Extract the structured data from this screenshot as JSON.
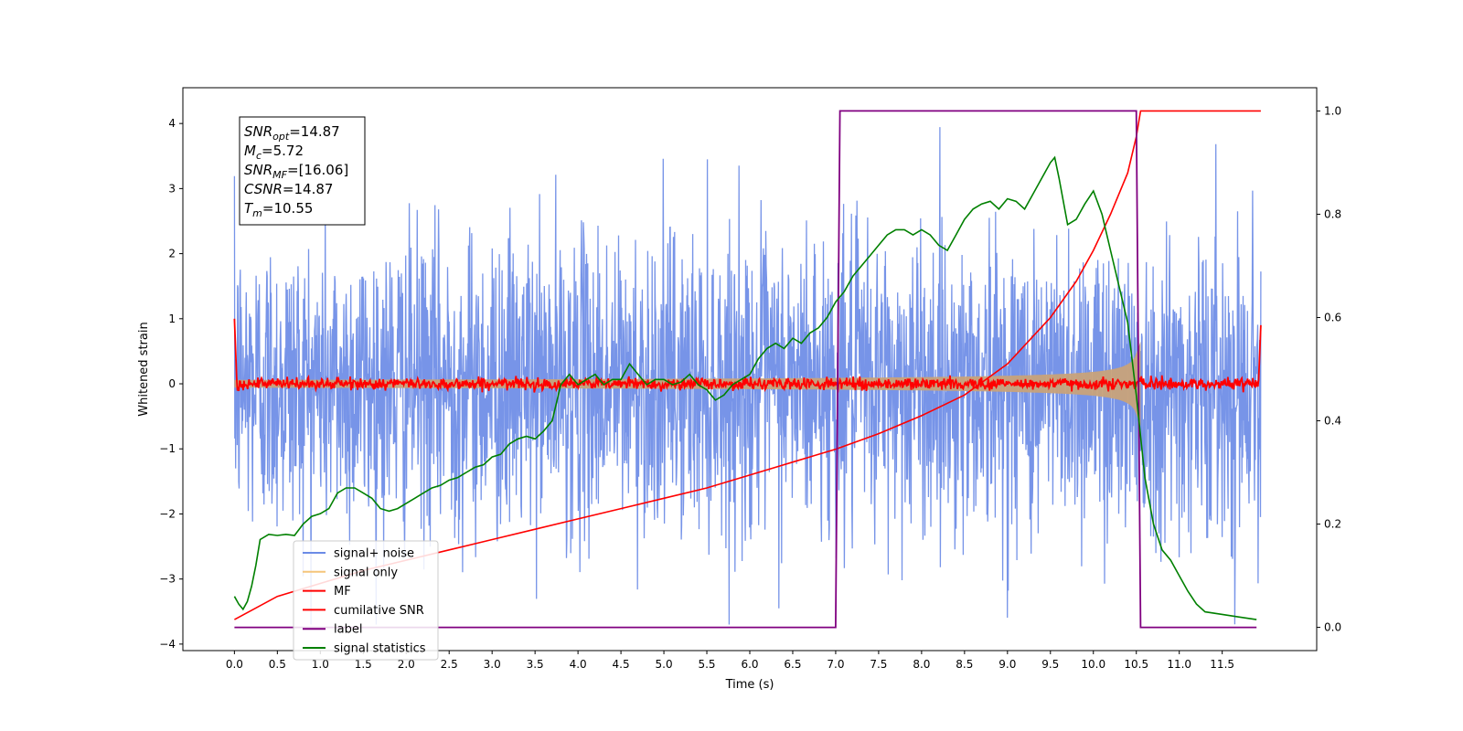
{
  "chart_data": {
    "type": "line",
    "xlabel": "Time (s)",
    "ylabel_left": "Whitened strain",
    "ylabel_right": "",
    "xlim": [
      -0.6,
      12.6
    ],
    "ylim_left": [
      -4.1,
      4.55
    ],
    "ylim_right": [
      -0.045,
      1.045
    ],
    "x_ticks": [
      "0.0",
      "0.5",
      "1.0",
      "1.5",
      "2.0",
      "2.5",
      "3.0",
      "3.5",
      "4.0",
      "4.5",
      "5.0",
      "5.5",
      "6.0",
      "6.5",
      "7.0",
      "7.5",
      "8.0",
      "8.5",
      "9.0",
      "9.5",
      "10.0",
      "10.5",
      "11.0",
      "11.5"
    ],
    "x_tick_values": [
      0,
      0.5,
      1,
      1.5,
      2,
      2.5,
      3,
      3.5,
      4,
      4.5,
      5,
      5.5,
      6,
      6.5,
      7,
      7.5,
      8,
      8.5,
      9,
      9.5,
      10,
      10.5,
      11,
      11.5
    ],
    "y_ticks_left": [
      "4",
      "3",
      "2",
      "1",
      "0",
      "−1",
      "−2",
      "−3",
      "−4"
    ],
    "y_tick_values_left": [
      4,
      3,
      2,
      1,
      0,
      -1,
      -2,
      -3,
      -4
    ],
    "y_ticks_right": [
      "1.0",
      "0.8",
      "0.6",
      "0.4",
      "0.2",
      "0.0"
    ],
    "y_tick_values_right": [
      1.0,
      0.8,
      0.6,
      0.4,
      0.2,
      0.0
    ],
    "grid": false,
    "legend_position": "lower-left",
    "annotation": {
      "lines": [
        {
          "main": "SNR",
          "sub": "opt",
          "value": "=14.87"
        },
        {
          "main": "M",
          "sub": "c",
          "value": "=5.72"
        },
        {
          "main": "SNR",
          "sub": "MF",
          "value": "=[16.06]"
        },
        {
          "main": "CSNR",
          "sub": "",
          "value": "=14.87"
        },
        {
          "main": "T",
          "sub": "m",
          "value": "=10.55"
        }
      ]
    },
    "series": [
      {
        "name": "signal+ noise",
        "axis": "left",
        "color": "#6b8be6",
        "description": "whitened noise plus signal, roughly spanning -2.3 to 2.3 with spikes",
        "noise_amplitude": 1.15,
        "x_range": [
          0,
          11.95
        ]
      },
      {
        "name": "signal only",
        "axis": "left",
        "color": "#f5c57a",
        "description": "chirp envelope growing from 0 to about 0.65 at 10.5 s then ending",
        "x_range": [
          0,
          10.55
        ]
      },
      {
        "name": "MF",
        "axis": "left",
        "color": "#ff0000",
        "description": "matched filter output fluctuating around 0 (about ±0.1), rising to 1.0 at the edges",
        "x_range": [
          0,
          11.95
        ]
      },
      {
        "name": "cumilative SNR",
        "axis": "right",
        "color": "#ff0000",
        "x": [
          0,
          0.5,
          1,
          1.5,
          2,
          2.5,
          3,
          3.5,
          4,
          4.5,
          5,
          5.5,
          6,
          6.5,
          7,
          7.5,
          8,
          8.5,
          9,
          9.5,
          9.8,
          10,
          10.2,
          10.4,
          10.5,
          10.55,
          11,
          11.95
        ],
        "values": [
          0.015,
          0.06,
          0.085,
          0.11,
          0.13,
          0.15,
          0.17,
          0.19,
          0.21,
          0.23,
          0.25,
          0.27,
          0.295,
          0.32,
          0.345,
          0.375,
          0.41,
          0.45,
          0.51,
          0.6,
          0.67,
          0.73,
          0.8,
          0.88,
          0.95,
          1.0,
          1.0,
          1.0
        ]
      },
      {
        "name": "label",
        "axis": "right",
        "color": "#800080",
        "x": [
          0,
          7.0,
          7.05,
          10.5,
          10.55,
          11.9
        ],
        "values": [
          0,
          0,
          1,
          1,
          0,
          0
        ]
      },
      {
        "name": "signal statistics",
        "axis": "right",
        "color": "#008000",
        "x": [
          0,
          0.05,
          0.1,
          0.15,
          0.2,
          0.25,
          0.3,
          0.4,
          0.5,
          0.6,
          0.7,
          0.8,
          0.9,
          1.0,
          1.1,
          1.2,
          1.3,
          1.4,
          1.5,
          1.6,
          1.7,
          1.8,
          1.9,
          2.0,
          2.1,
          2.2,
          2.3,
          2.4,
          2.5,
          2.6,
          2.7,
          2.8,
          2.9,
          3.0,
          3.1,
          3.2,
          3.3,
          3.4,
          3.5,
          3.6,
          3.7,
          3.8,
          3.9,
          4.0,
          4.1,
          4.2,
          4.3,
          4.4,
          4.5,
          4.6,
          4.7,
          4.8,
          4.9,
          5.0,
          5.1,
          5.2,
          5.3,
          5.4,
          5.5,
          5.6,
          5.7,
          5.8,
          5.9,
          6.0,
          6.1,
          6.2,
          6.3,
          6.4,
          6.5,
          6.6,
          6.7,
          6.8,
          6.9,
          7.0,
          7.1,
          7.2,
          7.3,
          7.4,
          7.5,
          7.6,
          7.7,
          7.8,
          7.9,
          8.0,
          8.1,
          8.2,
          8.3,
          8.4,
          8.5,
          8.6,
          8.7,
          8.8,
          8.9,
          9.0,
          9.1,
          9.2,
          9.3,
          9.4,
          9.5,
          9.55,
          9.6,
          9.7,
          9.8,
          9.9,
          10.0,
          10.1,
          10.2,
          10.3,
          10.4,
          10.5,
          10.6,
          10.7,
          10.8,
          10.9,
          11.0,
          11.1,
          11.2,
          11.3,
          11.5,
          11.7,
          11.9
        ],
        "values": [
          0.06,
          0.045,
          0.035,
          0.05,
          0.08,
          0.12,
          0.17,
          0.18,
          0.178,
          0.18,
          0.178,
          0.2,
          0.215,
          0.22,
          0.23,
          0.26,
          0.27,
          0.27,
          0.26,
          0.25,
          0.23,
          0.225,
          0.23,
          0.24,
          0.25,
          0.26,
          0.27,
          0.275,
          0.285,
          0.29,
          0.3,
          0.31,
          0.315,
          0.33,
          0.335,
          0.355,
          0.365,
          0.37,
          0.365,
          0.38,
          0.4,
          0.47,
          0.49,
          0.47,
          0.48,
          0.49,
          0.47,
          0.48,
          0.48,
          0.51,
          0.49,
          0.47,
          0.48,
          0.48,
          0.47,
          0.475,
          0.49,
          0.47,
          0.46,
          0.44,
          0.45,
          0.47,
          0.48,
          0.49,
          0.52,
          0.54,
          0.55,
          0.54,
          0.56,
          0.55,
          0.57,
          0.58,
          0.6,
          0.63,
          0.65,
          0.68,
          0.7,
          0.72,
          0.74,
          0.76,
          0.77,
          0.77,
          0.76,
          0.77,
          0.76,
          0.74,
          0.73,
          0.76,
          0.79,
          0.81,
          0.82,
          0.825,
          0.81,
          0.83,
          0.825,
          0.81,
          0.84,
          0.87,
          0.9,
          0.91,
          0.87,
          0.78,
          0.79,
          0.82,
          0.845,
          0.8,
          0.73,
          0.66,
          0.59,
          0.45,
          0.29,
          0.2,
          0.15,
          0.13,
          0.1,
          0.07,
          0.045,
          0.03,
          0.025,
          0.02,
          0.015
        ]
      }
    ]
  }
}
